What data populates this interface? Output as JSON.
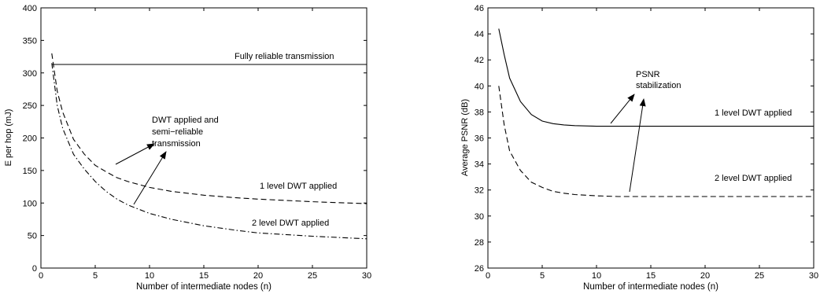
{
  "chart_data": [
    {
      "type": "line",
      "xlabel": "Number of intermediate nodes (n)",
      "ylabel": "E per hop (mJ)",
      "xlim": [
        0,
        30
      ],
      "ylim": [
        0,
        400
      ],
      "xticks": [
        0,
        5,
        10,
        15,
        20,
        25,
        30
      ],
      "yticks": [
        0,
        50,
        100,
        150,
        200,
        250,
        300,
        350,
        400
      ],
      "grid": false,
      "series": [
        {
          "name": "Fully reliable transmission",
          "style": "solid",
          "x": [
            1,
            30
          ],
          "y": [
            313,
            313
          ]
        },
        {
          "name": "1 level DWT applied",
          "style": "dashed",
          "x": [
            1,
            1.5,
            2,
            3,
            4,
            5,
            6,
            7,
            8,
            10,
            12,
            15,
            18,
            20,
            25,
            30
          ],
          "y": [
            330,
            272,
            240,
            198,
            175,
            158,
            148,
            139,
            133,
            124,
            118,
            112,
            108,
            106,
            102,
            99
          ]
        },
        {
          "name": "2 level DWT applied",
          "style": "dashdot",
          "x": [
            1,
            1.5,
            2,
            3,
            4,
            5,
            6,
            7,
            8,
            10,
            12,
            15,
            18,
            20,
            25,
            30
          ],
          "y": [
            315,
            250,
            215,
            175,
            152,
            133,
            118,
            106,
            97,
            84,
            75,
            65,
            58,
            54,
            49,
            45
          ]
        }
      ],
      "annotations": [
        "Fully reliable transmission",
        "DWT applied and",
        "semi−reliable",
        "transmission",
        "1 level DWT applied",
        "2 level DWT applied"
      ]
    },
    {
      "type": "line",
      "xlabel": "Number of intermediate nodes (n)",
      "ylabel": "Average PSNR (dB)",
      "xlim": [
        0,
        30
      ],
      "ylim": [
        26,
        46
      ],
      "xticks": [
        0,
        5,
        10,
        15,
        20,
        25,
        30
      ],
      "yticks": [
        26,
        28,
        30,
        32,
        34,
        36,
        38,
        40,
        42,
        44,
        46
      ],
      "grid": false,
      "series": [
        {
          "name": "1 level DWT applied",
          "style": "solid",
          "x": [
            1,
            1.5,
            2,
            3,
            4,
            5,
            6,
            7,
            8,
            10,
            12,
            15,
            20,
            25,
            30
          ],
          "y": [
            44.4,
            42.4,
            40.6,
            38.8,
            37.8,
            37.3,
            37.1,
            37.0,
            36.95,
            36.9,
            36.9,
            36.9,
            36.9,
            36.9,
            36.9
          ]
        },
        {
          "name": "2 level DWT applied",
          "style": "dashed",
          "x": [
            1,
            1.5,
            2,
            3,
            4,
            5,
            6,
            7,
            8,
            10,
            12,
            15,
            20,
            25,
            30
          ],
          "y": [
            40.0,
            37.0,
            35.0,
            33.5,
            32.6,
            32.2,
            31.9,
            31.75,
            31.65,
            31.55,
            31.5,
            31.5,
            31.5,
            31.5,
            31.5
          ]
        }
      ],
      "annotations": [
        "PSNR",
        "stabilization",
        "1 level DWT applied",
        "2 level DWT applied"
      ]
    }
  ]
}
